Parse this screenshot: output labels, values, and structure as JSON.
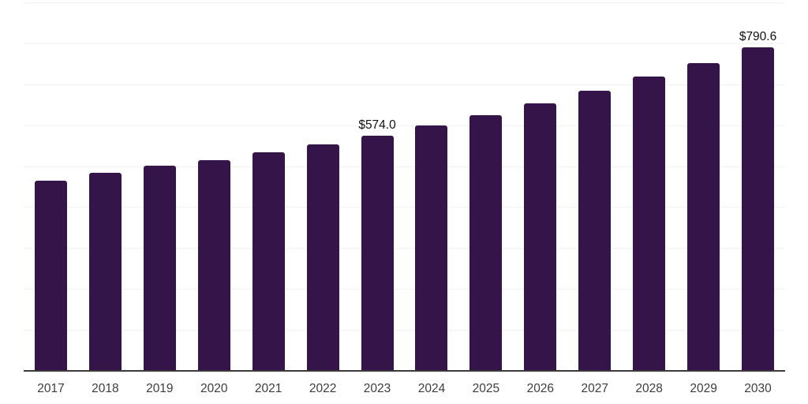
{
  "chart": {
    "background_color": "#ffffff",
    "bar_color": "#341449",
    "gridline_color": "#f2f2f3",
    "axis_line_color": "#3a3a3a",
    "value_label_color": "#111111",
    "tick_label_color": "#3d3d3d"
  },
  "chart_data": {
    "type": "bar",
    "title": "",
    "xlabel": "",
    "ylabel": "",
    "categories": [
      "2017",
      "2018",
      "2019",
      "2020",
      "2021",
      "2022",
      "2023",
      "2024",
      "2025",
      "2026",
      "2027",
      "2028",
      "2029",
      "2030"
    ],
    "values": [
      465,
      483,
      501,
      514,
      534.5,
      554,
      574.0,
      600,
      624.5,
      653,
      684,
      718,
      752.5,
      790.6
    ],
    "data_labels": [
      "",
      "",
      "",
      "",
      "",
      "",
      "$574.0",
      "",
      "",
      "",
      "",
      "",
      "",
      "$790.6"
    ],
    "ylim": [
      0,
      900
    ],
    "gridline_step": 100,
    "grid": "horizontal-only",
    "y_axis_tick_labels": "none",
    "legend": "none"
  }
}
